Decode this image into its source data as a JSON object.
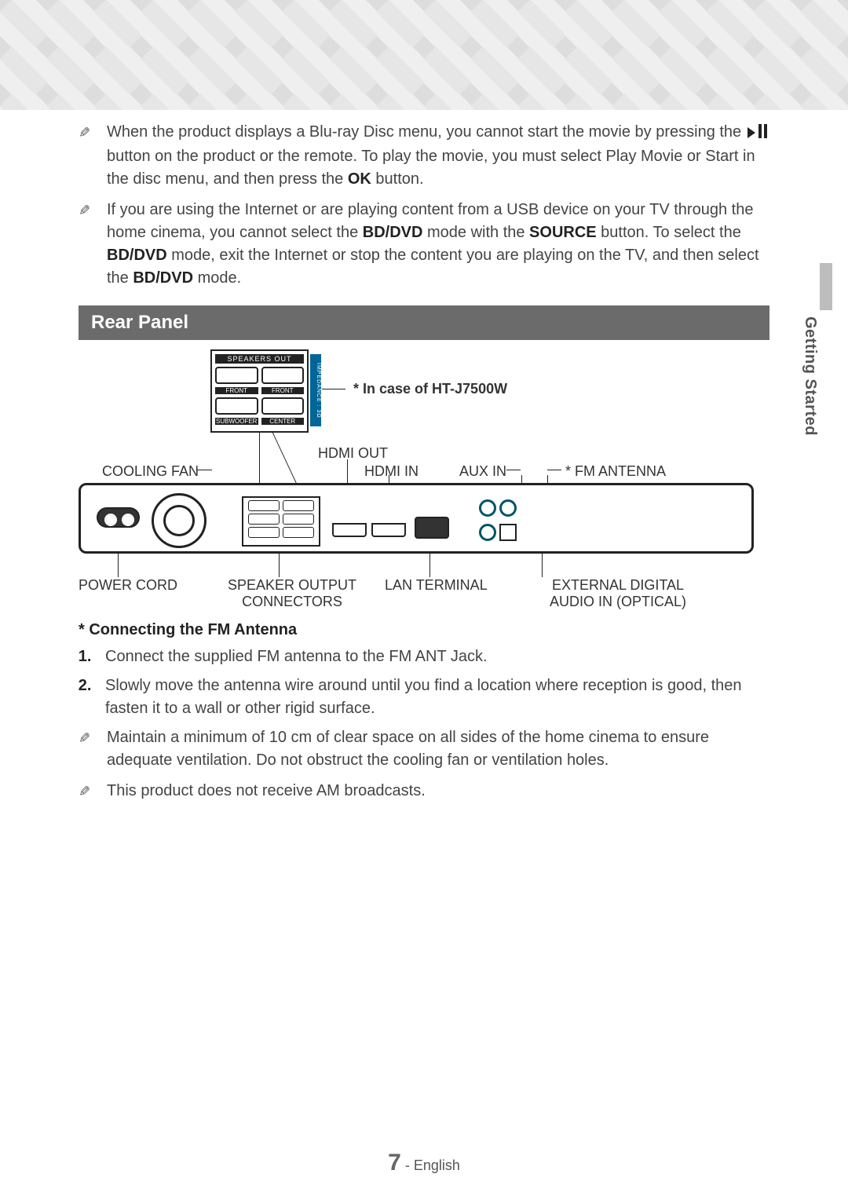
{
  "notes_top": [
    {
      "parts": [
        {
          "t": "When the product displays a Blu-ray Disc menu, you cannot start the movie by pressing the "
        },
        {
          "icon": "play-pause"
        },
        {
          "t": " button on the product or the remote. To play the movie, you must select Play Movie or Start in the disc menu, and then press the "
        },
        {
          "bold": "OK"
        },
        {
          "t": " button."
        }
      ]
    },
    {
      "parts": [
        {
          "t": "If you are using the Internet or are playing content from a USB device on your TV through the home cinema, you cannot select the "
        },
        {
          "bold": "BD/DVD"
        },
        {
          "t": " mode with the "
        },
        {
          "bold": "SOURCE"
        },
        {
          "t": " button. To select the "
        },
        {
          "bold": "BD/DVD"
        },
        {
          "t": " mode, exit the Internet or stop the content you are playing on the TV, and then select the "
        },
        {
          "bold": "BD/DVD"
        },
        {
          "t": " mode."
        }
      ]
    }
  ],
  "section_title": "Rear Panel",
  "side_tab": "Getting Started",
  "diagram": {
    "speakers_out_label": "SPEAKERS OUT",
    "speakers_sub_labels": [
      "FRONT",
      "FRONT",
      "SUBWOOFER",
      "CENTER"
    ],
    "impedance_label": "IMPEDANCE : 3Ω",
    "product_note": "* In case of HT-J7500W",
    "callouts_top": {
      "hdmi_out": "HDMI OUT",
      "cooling_fan": "COOLING FAN",
      "hdmi_in": "HDMI IN",
      "aux_in": "AUX IN",
      "fm_antenna": "* FM ANTENNA"
    },
    "callouts_bottom": {
      "power_cord": "POWER CORD",
      "speaker_output_1": "SPEAKER OUTPUT",
      "speaker_output_2": "CONNECTORS",
      "lan_terminal": "LAN TERMINAL",
      "ext_digital_1": "EXTERNAL DIGITAL",
      "ext_digital_2": "AUDIO IN (OPTICAL)"
    }
  },
  "fm_heading": "* Connecting the FM Antenna",
  "fm_steps": [
    "Connect the supplied FM antenna to the FM ANT Jack.",
    "Slowly move the antenna wire around until you find a location where reception is good, then fasten it to a wall or other rigid surface."
  ],
  "notes_bottom": [
    "Maintain a minimum of 10 cm of clear space on all sides of the home cinema to ensure adequate ventilation. Do not obstruct the cooling fan or ventilation holes.",
    "This product does not receive AM broadcasts."
  ],
  "footer": {
    "page": "7",
    "sep": " - ",
    "lang": "English"
  }
}
